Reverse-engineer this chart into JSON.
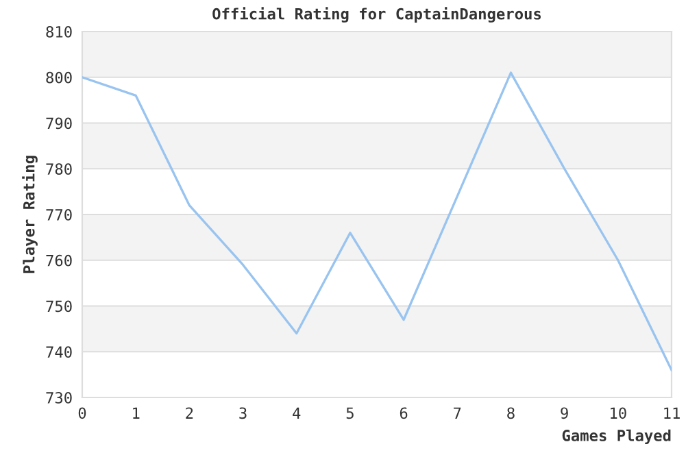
{
  "chart_data": {
    "type": "line",
    "title": "Official Rating for CaptainDangerous",
    "xlabel": "Games Played",
    "ylabel": "Player Rating",
    "x": [
      0,
      1,
      2,
      3,
      4,
      5,
      6,
      7,
      8,
      9,
      10,
      11
    ],
    "series": [
      {
        "color": "#99c4f0",
        "values": [
          800,
          796,
          772,
          759,
          744,
          766,
          747,
          774,
          801,
          780,
          760,
          736
        ]
      }
    ],
    "xlim": [
      0,
      11
    ],
    "xticks": [
      0,
      1,
      2,
      3,
      4,
      5,
      6,
      7,
      8,
      9,
      10,
      11
    ],
    "ylim": [
      730,
      810
    ],
    "yticks": [
      730,
      740,
      750,
      760,
      770,
      780,
      790,
      800,
      810
    ],
    "grid": "y",
    "marker": "none",
    "line_style": "solid",
    "bands": [
      {
        "axis": "y",
        "from": 740,
        "to": 750,
        "color": "#f3f3f3"
      },
      {
        "axis": "y",
        "from": 760,
        "to": 770,
        "color": "#f3f3f3"
      },
      {
        "axis": "y",
        "from": 780,
        "to": 790,
        "color": "#f3f3f3"
      },
      {
        "axis": "y",
        "from": 800,
        "to": 810,
        "color": "#f3f3f3"
      }
    ]
  }
}
